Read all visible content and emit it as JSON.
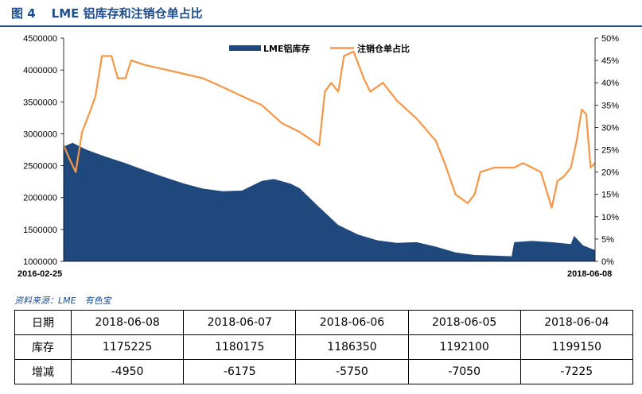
{
  "figure": {
    "number": "图 4",
    "title": "LME 铝库存和注销仓单占比",
    "source": "资料来源：LME　有色宝"
  },
  "colors": {
    "stock": "#1f497d",
    "ratio": "#f79646",
    "title": "#1f4e8c"
  },
  "chart_data": {
    "type": "area",
    "x_start": "2016-02-25",
    "x_end": "2018-06-08",
    "left_axis": {
      "ticks": [
        "1000000",
        "1500000",
        "2000000",
        "2500000",
        "3000000",
        "3500000",
        "4000000",
        "4500000"
      ],
      "ylim": [
        1000000,
        4500000
      ]
    },
    "right_axis": {
      "ticks": [
        "0%",
        "5%",
        "10%",
        "15%",
        "20%",
        "25%",
        "30%",
        "35%",
        "40%",
        "45%",
        "50%"
      ],
      "ylim": [
        0,
        50
      ]
    },
    "legend_position": "top-center",
    "series": [
      {
        "name": "LME铝库存",
        "type": "area",
        "axis": "left",
        "points": [
          [
            "2016-02-25",
            2800000
          ],
          [
            "2016-03-10",
            2860000
          ],
          [
            "2016-04-01",
            2750000
          ],
          [
            "2016-05-01",
            2640000
          ],
          [
            "2016-06-01",
            2540000
          ],
          [
            "2016-07-01",
            2430000
          ],
          [
            "2016-08-01",
            2320000
          ],
          [
            "2016-09-01",
            2220000
          ],
          [
            "2016-10-01",
            2140000
          ],
          [
            "2016-11-01",
            2100000
          ],
          [
            "2016-12-01",
            2110000
          ],
          [
            "2017-01-01",
            2260000
          ],
          [
            "2017-01-20",
            2290000
          ],
          [
            "2017-02-15",
            2220000
          ],
          [
            "2017-03-01",
            2150000
          ],
          [
            "2017-04-01",
            1850000
          ],
          [
            "2017-05-01",
            1570000
          ],
          [
            "2017-06-01",
            1420000
          ],
          [
            "2017-07-01",
            1330000
          ],
          [
            "2017-08-01",
            1290000
          ],
          [
            "2017-09-01",
            1300000
          ],
          [
            "2017-10-01",
            1230000
          ],
          [
            "2017-11-01",
            1140000
          ],
          [
            "2017-12-01",
            1100000
          ],
          [
            "2018-01-01",
            1090000
          ],
          [
            "2018-01-28",
            1080000
          ],
          [
            "2018-02-01",
            1300000
          ],
          [
            "2018-03-01",
            1320000
          ],
          [
            "2018-04-01",
            1300000
          ],
          [
            "2018-05-01",
            1270000
          ],
          [
            "2018-05-06",
            1400000
          ],
          [
            "2018-05-20",
            1250000
          ],
          [
            "2018-06-08",
            1175225
          ]
        ]
      },
      {
        "name": "注销仓单占比",
        "type": "line",
        "axis": "right",
        "points": [
          [
            "2016-02-25",
            26
          ],
          [
            "2016-03-05",
            23
          ],
          [
            "2016-03-15",
            20
          ],
          [
            "2016-03-25",
            29
          ],
          [
            "2016-04-05",
            33
          ],
          [
            "2016-04-15",
            37
          ],
          [
            "2016-04-25",
            46
          ],
          [
            "2016-05-10",
            46
          ],
          [
            "2016-05-20",
            41
          ],
          [
            "2016-06-01",
            41
          ],
          [
            "2016-06-10",
            45
          ],
          [
            "2016-07-01",
            44
          ],
          [
            "2016-08-01",
            43
          ],
          [
            "2016-09-01",
            42
          ],
          [
            "2016-10-01",
            41
          ],
          [
            "2016-11-01",
            39
          ],
          [
            "2016-12-01",
            37
          ],
          [
            "2017-01-01",
            35
          ],
          [
            "2017-02-01",
            31
          ],
          [
            "2017-03-01",
            29
          ],
          [
            "2017-04-01",
            26
          ],
          [
            "2017-04-10",
            38
          ],
          [
            "2017-04-20",
            40
          ],
          [
            "2017-05-01",
            38
          ],
          [
            "2017-05-10",
            46
          ],
          [
            "2017-05-25",
            47
          ],
          [
            "2017-06-10",
            41
          ],
          [
            "2017-06-20",
            38
          ],
          [
            "2017-07-10",
            40
          ],
          [
            "2017-08-01",
            36
          ],
          [
            "2017-09-01",
            32
          ],
          [
            "2017-10-01",
            27
          ],
          [
            "2017-10-15",
            22
          ],
          [
            "2017-11-01",
            15
          ],
          [
            "2017-11-20",
            13
          ],
          [
            "2017-12-01",
            15
          ],
          [
            "2017-12-10",
            20
          ],
          [
            "2018-01-01",
            21
          ],
          [
            "2018-02-01",
            21
          ],
          [
            "2018-02-15",
            22
          ],
          [
            "2018-03-01",
            21
          ],
          [
            "2018-03-15",
            20
          ],
          [
            "2018-04-01",
            12
          ],
          [
            "2018-04-10",
            18
          ],
          [
            "2018-04-20",
            19
          ],
          [
            "2018-05-01",
            21
          ],
          [
            "2018-05-10",
            27
          ],
          [
            "2018-05-18",
            34
          ],
          [
            "2018-05-25",
            33
          ],
          [
            "2018-06-01",
            21
          ],
          [
            "2018-06-08",
            22
          ]
        ]
      }
    ]
  },
  "table": {
    "rows": [
      {
        "header": "日期",
        "cells": [
          "2018-06-08",
          "2018-06-07",
          "2018-06-06",
          "2018-06-05",
          "2018-06-04"
        ]
      },
      {
        "header": "库存",
        "cells": [
          "1175225",
          "1180175",
          "1186350",
          "1192100",
          "1199150"
        ]
      },
      {
        "header": "增减",
        "cells": [
          "-4950",
          "-6175",
          "-5750",
          "-7050",
          "-7225"
        ]
      }
    ]
  }
}
